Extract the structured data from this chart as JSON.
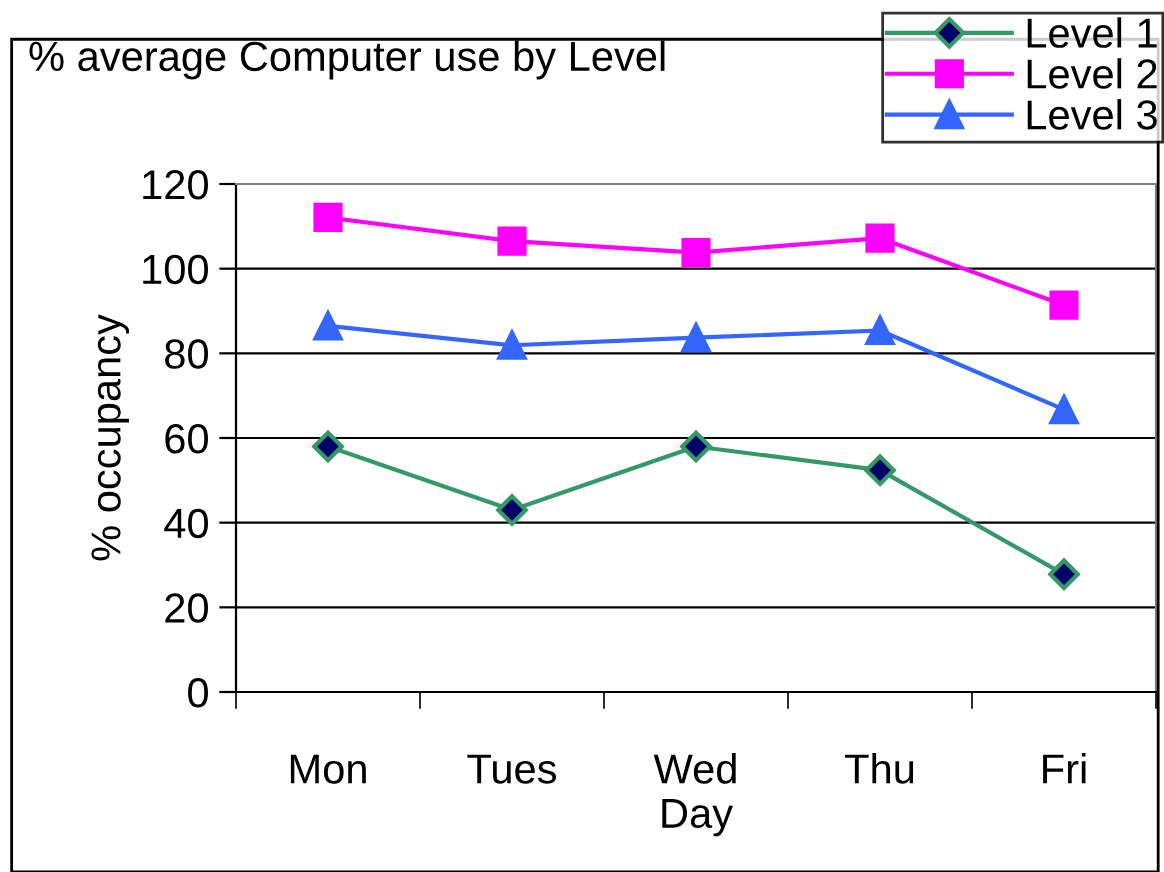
{
  "chart_data": {
    "type": "line",
    "title": "% average Computer use by Level",
    "xlabel": "Day",
    "ylabel": "% occupancy",
    "categories": [
      "Mon",
      "Tues",
      "Wed",
      "Thu",
      "Fri"
    ],
    "series": [
      {
        "name": "Level 1",
        "color": "#339966",
        "marker": "diamond",
        "values": [
          58,
          43,
          58,
          52.4,
          27.8
        ]
      },
      {
        "name": "Level 2",
        "color": "#ff00ff",
        "marker": "square",
        "values": [
          112.1,
          106.5,
          103.8,
          107.2,
          91.4
        ]
      },
      {
        "name": "Level 3",
        "color": "#3366ff",
        "marker": "triangle",
        "values": [
          86.5,
          81.9,
          83.7,
          85.4,
          66.7
        ]
      }
    ],
    "ylim": [
      0,
      120
    ],
    "yticks": [
      0,
      20,
      40,
      60,
      80,
      100,
      120
    ],
    "grid": "y",
    "legend": "top right",
    "line_style": "solid"
  }
}
